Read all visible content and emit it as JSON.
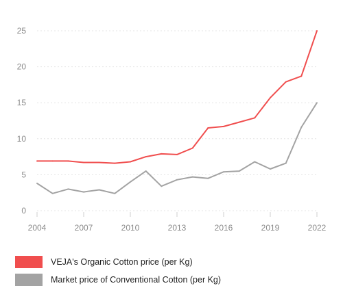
{
  "chart_data": {
    "type": "line",
    "title": "",
    "xlabel": "",
    "ylabel": "",
    "xlim": [
      2004,
      2022
    ],
    "ylim": [
      0,
      25
    ],
    "grid": "horizontal",
    "y_ticks": [
      "0",
      "5",
      "10",
      "15",
      "20",
      "25"
    ],
    "x_ticks": [
      "2004",
      "2007",
      "2010",
      "2013",
      "2016",
      "2019",
      "2022"
    ],
    "legend_position": "bottom-left",
    "series": [
      {
        "name": "VEJA's Organic Cotton price (per Kg)",
        "color": "#f04e4e",
        "x": [
          2004,
          2005,
          2006,
          2007,
          2008,
          2009,
          2010,
          2011,
          2012,
          2013,
          2014,
          2015,
          2016,
          2017,
          2018,
          2019,
          2020,
          2021,
          2022
        ],
        "y": [
          6.9,
          6.9,
          6.9,
          6.7,
          6.7,
          6.6,
          6.8,
          7.5,
          7.9,
          7.8,
          8.7,
          11.5,
          11.7,
          12.3,
          12.9,
          15.7,
          17.9,
          18.7,
          25.0
        ]
      },
      {
        "name": "Market price of Conventional Cotton (per Kg)",
        "color": "#a3a3a3",
        "x": [
          2004,
          2005,
          2006,
          2007,
          2008,
          2009,
          2010,
          2011,
          2012,
          2013,
          2014,
          2015,
          2016,
          2017,
          2018,
          2019,
          2020,
          2021,
          2022
        ],
        "y": [
          3.8,
          2.4,
          3.0,
          2.6,
          2.9,
          2.4,
          4.0,
          5.5,
          3.4,
          4.3,
          4.7,
          4.5,
          5.4,
          5.5,
          6.8,
          5.8,
          6.6,
          11.6,
          15.0
        ]
      }
    ]
  }
}
